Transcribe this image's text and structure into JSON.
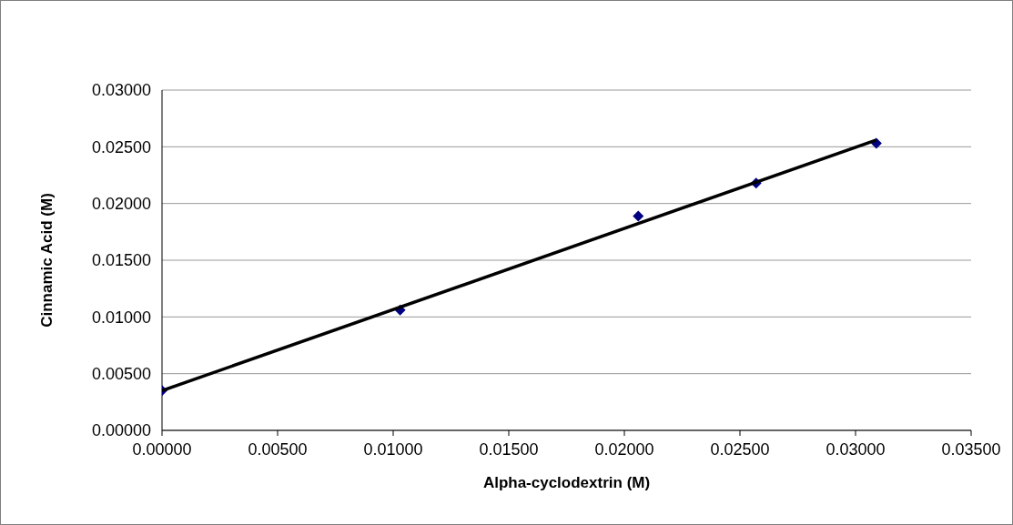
{
  "chart_data": {
    "type": "scatter",
    "xlabel": "Alpha-cyclodextrin (M)",
    "ylabel": "Cinnamic Acid (M)",
    "x": [
      0,
      0.0103,
      0.0206,
      0.0257,
      0.0309
    ],
    "series": [
      {
        "color": "#000080",
        "values": [
          0.0035,
          0.0106,
          0.0189,
          0.0218,
          0.0253
        ],
        "marker": "diamond"
      },
      {
        "type": "line",
        "color": "#000000",
        "x": [
          0,
          0.0309
        ],
        "values": [
          0.0035,
          0.0256
        ],
        "marker": "none",
        "line_style": "solid"
      }
    ],
    "xlim": [
      0,
      0.035
    ],
    "xticks": [
      {
        "value": 0,
        "label": "0.00000"
      },
      {
        "value": 0.005,
        "label": "0.00500"
      },
      {
        "value": 0.01,
        "label": "0.01000"
      },
      {
        "value": 0.015,
        "label": "0.01500"
      },
      {
        "value": 0.02,
        "label": "0.02000"
      },
      {
        "value": 0.025,
        "label": "0.02500"
      },
      {
        "value": 0.03,
        "label": "0.03000"
      },
      {
        "value": 0.035,
        "label": "0.03500"
      }
    ],
    "ylim": [
      0,
      0.03
    ],
    "yticks": [
      {
        "value": 0,
        "label": "0.00000"
      },
      {
        "value": 0.005,
        "label": "0.00500"
      },
      {
        "value": 0.01,
        "label": "0.01000"
      },
      {
        "value": 0.015,
        "label": "0.01500"
      },
      {
        "value": 0.02,
        "label": "0.02000"
      },
      {
        "value": 0.025,
        "label": "0.02500"
      },
      {
        "value": 0.03,
        "label": "0.03000"
      }
    ],
    "grid": "y"
  }
}
